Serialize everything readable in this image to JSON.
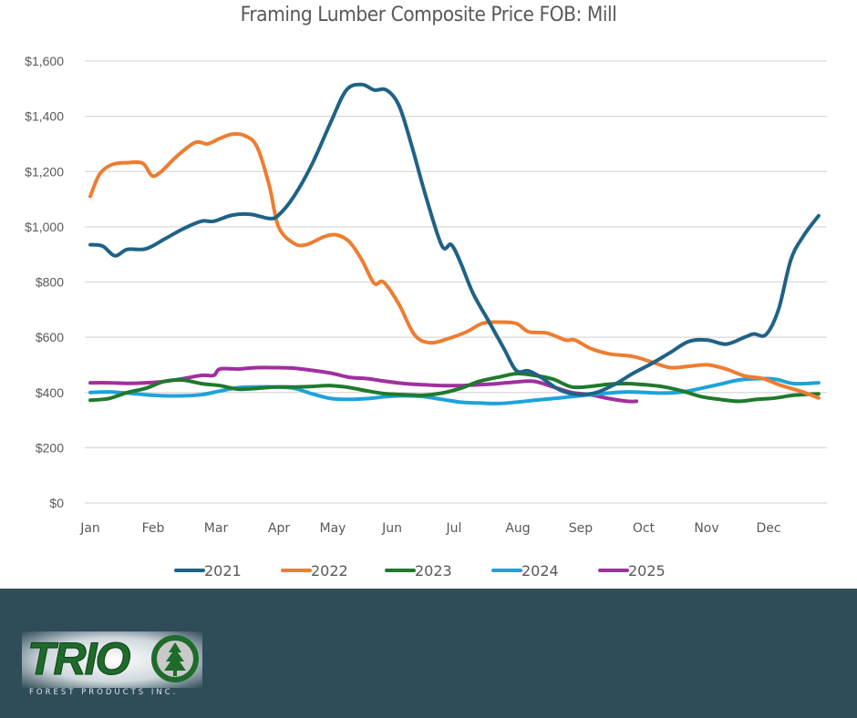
{
  "chart_data": {
    "type": "line",
    "title": "Framing Lumber Composite Price FOB: Mill",
    "xlabel": "",
    "ylabel": "",
    "x_unit": "month index (0 = Jan, 11 = Dec)",
    "categories": [
      "Jan",
      "Feb",
      "Mar",
      "Apr",
      "May",
      "Jun",
      "Jul",
      "Aug",
      "Sep",
      "Oct",
      "Nov",
      "Dec"
    ],
    "ylim": [
      0,
      1600
    ],
    "yticks": [
      0,
      200,
      400,
      600,
      800,
      1000,
      1200,
      1400,
      1600
    ],
    "ytick_labels": [
      "$0",
      "$200",
      "$400",
      "$600",
      "$800",
      "$1,000",
      "$1,200",
      "$1,400",
      "$1,600"
    ],
    "grid": true,
    "legend_position": "bottom",
    "series": [
      {
        "name": "2021",
        "color": "#1f6286",
        "x": [
          0,
          0.2,
          0.4,
          0.6,
          0.9,
          1.2,
          1.5,
          1.8,
          2.0,
          2.3,
          2.6,
          2.9,
          3.05,
          3.3,
          3.6,
          3.9,
          4.15,
          4.4,
          4.6,
          4.8,
          5.0,
          5.2,
          5.45,
          5.7,
          5.85,
          6.0,
          6.2,
          6.45,
          6.7,
          6.9,
          7.1,
          7.3,
          7.6,
          7.9,
          8.2,
          8.5,
          8.8,
          9.1,
          9.4,
          9.7,
          10.0,
          10.3,
          10.6,
          10.75,
          10.95,
          11.15,
          11.35,
          11.55,
          11.8
        ],
        "values": [
          935,
          930,
          895,
          918,
          920,
          955,
          992,
          1020,
          1020,
          1042,
          1045,
          1030,
          1042,
          1110,
          1230,
          1380,
          1495,
          1515,
          1495,
          1495,
          1440,
          1300,
          1100,
          930,
          935,
          870,
          760,
          660,
          560,
          480,
          478,
          455,
          410,
          393,
          400,
          430,
          470,
          505,
          545,
          585,
          590,
          575,
          600,
          612,
          610,
          700,
          880,
          965,
          1040
        ]
      },
      {
        "name": "2022",
        "color": "#ed7d31",
        "x": [
          0,
          0.15,
          0.35,
          0.6,
          0.85,
          1.0,
          1.15,
          1.4,
          1.7,
          1.9,
          2.1,
          2.3,
          2.5,
          2.7,
          2.9,
          3.05,
          3.3,
          3.5,
          3.8,
          4.0,
          4.2,
          4.4,
          4.6,
          4.75,
          5.0,
          5.25,
          5.5,
          5.8,
          6.1,
          6.35,
          6.6,
          6.9,
          7.1,
          7.4,
          7.7,
          7.85,
          8.1,
          8.4,
          8.8,
          9.1,
          9.4,
          9.7,
          10.0,
          10.3,
          10.6,
          10.9,
          11.2,
          11.5,
          11.8
        ],
        "values": [
          1110,
          1190,
          1225,
          1232,
          1230,
          1185,
          1200,
          1255,
          1305,
          1300,
          1320,
          1335,
          1330,
          1290,
          1150,
          1000,
          940,
          935,
          965,
          970,
          945,
          880,
          795,
          800,
          720,
          610,
          580,
          595,
          620,
          650,
          655,
          650,
          620,
          615,
          590,
          590,
          560,
          540,
          530,
          510,
          490,
          495,
          500,
          485,
          460,
          450,
          425,
          405,
          380
        ]
      },
      {
        "name": "2023",
        "color": "#1f7a2c",
        "x": [
          0,
          0.3,
          0.6,
          0.9,
          1.2,
          1.5,
          1.8,
          2.1,
          2.4,
          2.7,
          3.0,
          3.3,
          3.6,
          3.9,
          4.2,
          4.5,
          4.8,
          5.1,
          5.4,
          5.7,
          6.0,
          6.3,
          6.6,
          6.9,
          7.2,
          7.5,
          7.8,
          8.1,
          8.4,
          8.7,
          9.0,
          9.3,
          9.6,
          9.9,
          10.2,
          10.5,
          10.8,
          11.1,
          11.4,
          11.8
        ],
        "values": [
          372,
          378,
          400,
          415,
          440,
          445,
          432,
          425,
          412,
          415,
          420,
          420,
          422,
          425,
          418,
          405,
          395,
          392,
          390,
          398,
          415,
          440,
          455,
          468,
          462,
          448,
          420,
          422,
          430,
          432,
          428,
          420,
          405,
          385,
          375,
          368,
          375,
          380,
          390,
          395
        ]
      },
      {
        "name": "2024",
        "color": "#1ea2db",
        "x": [
          0,
          0.3,
          0.6,
          0.9,
          1.2,
          1.5,
          1.8,
          2.1,
          2.4,
          2.7,
          3.0,
          3.3,
          3.6,
          3.9,
          4.2,
          4.5,
          4.8,
          5.1,
          5.4,
          5.7,
          6.0,
          6.3,
          6.6,
          6.9,
          7.2,
          7.5,
          7.8,
          8.1,
          8.4,
          8.7,
          9.0,
          9.3,
          9.6,
          9.9,
          10.2,
          10.5,
          10.8,
          11.1,
          11.4,
          11.8
        ],
        "values": [
          400,
          402,
          398,
          392,
          388,
          388,
          392,
          405,
          418,
          420,
          420,
          415,
          395,
          378,
          375,
          378,
          385,
          388,
          385,
          375,
          365,
          362,
          360,
          365,
          372,
          378,
          385,
          392,
          398,
          402,
          400,
          398,
          402,
          415,
          430,
          445,
          450,
          448,
          432,
          435
        ]
      },
      {
        "name": "2025",
        "color": "#a0309e",
        "x": [
          0,
          0.3,
          0.6,
          0.9,
          1.2,
          1.5,
          1.8,
          2.0,
          2.1,
          2.4,
          2.7,
          3.0,
          3.3,
          3.6,
          3.9,
          4.2,
          4.5,
          4.8,
          5.1,
          5.4,
          5.7,
          6.0,
          6.3,
          6.6,
          6.9,
          7.2,
          7.5,
          7.8,
          8.1,
          8.4,
          8.7,
          8.85
        ],
        "values": [
          435,
          435,
          433,
          435,
          440,
          450,
          462,
          462,
          485,
          485,
          490,
          490,
          488,
          480,
          470,
          455,
          450,
          440,
          432,
          428,
          425,
          425,
          428,
          432,
          438,
          440,
          420,
          400,
          392,
          378,
          368,
          368
        ]
      }
    ]
  },
  "footer": {
    "brand_name": "TRIO",
    "brand_tagline": "FOREST PRODUCTS INC.",
    "background_color": "#2f4c59"
  }
}
